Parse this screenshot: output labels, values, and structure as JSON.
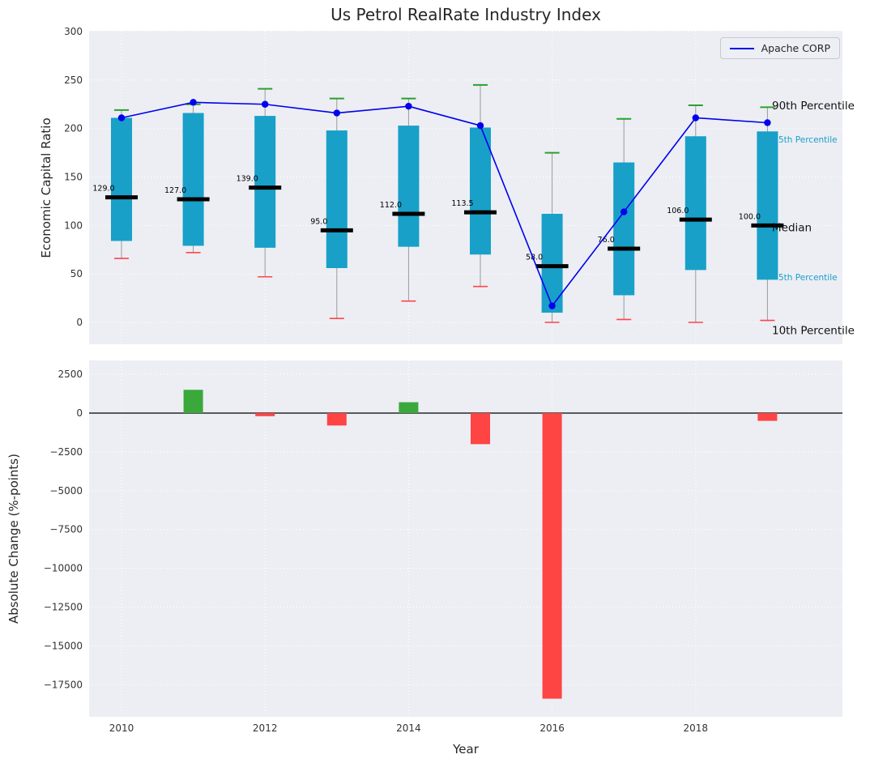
{
  "title": "Us Petrol RealRate Industry Index",
  "colors": {
    "box_fill": "#18a0c8",
    "median_line": "#000000",
    "p90_cap": "#2ca02c",
    "p10_cap": "#ff4545",
    "whisker": "#9a9a9a",
    "company_line": "#0000ee",
    "bar_positive": "#3aa83a",
    "bar_negative": "#ff4444",
    "panel_background": "#eceef4",
    "grid": "#ffffff",
    "annotation_percentile": "#1a9fc9",
    "text": "#333333"
  },
  "legend": {
    "items": [
      {
        "label": "Apache CORP",
        "color": "#0000ee"
      }
    ]
  },
  "chart_data": [
    {
      "type": "box",
      "title": "Us Petrol RealRate Industry Index",
      "ylabel": "Economic Capital Ratio",
      "ylim": [
        -22,
        302
      ],
      "yticks": [
        300,
        250,
        200,
        150,
        100,
        50,
        0
      ],
      "years": [
        2010,
        2011,
        2012,
        2013,
        2014,
        2015,
        2016,
        2017,
        2018,
        2019
      ],
      "percentile_90": [
        219,
        225,
        241,
        231,
        231,
        245,
        175,
        210,
        224,
        222
      ],
      "percentile_75": [
        211,
        216,
        213,
        198,
        203,
        201,
        112,
        165,
        192,
        197
      ],
      "median": [
        129.0,
        127.0,
        139.0,
        95.0,
        112.0,
        113.5,
        58.0,
        76.0,
        106.0,
        100.0
      ],
      "percentile_25": [
        84,
        79,
        77,
        56,
        78,
        70,
        10,
        28,
        54,
        44
      ],
      "percentile_10": [
        66,
        72,
        47,
        4,
        22,
        37,
        0,
        3,
        0,
        2
      ],
      "series": [
        {
          "name": "Apache CORP",
          "values": [
            211,
            227,
            225,
            216,
            223,
            203,
            17,
            114,
            211,
            206
          ]
        }
      ],
      "annotations": [
        {
          "text": "90th Percentile",
          "value": 224,
          "style": "black"
        },
        {
          "text": "5th Percentile",
          "value": 189,
          "style": "cyan"
        },
        {
          "text": "Median",
          "value": 98,
          "style": "black"
        },
        {
          "text": "5th Percentile",
          "value": 47,
          "style": "cyan"
        },
        {
          "text": "10th Percentile",
          "value": -8,
          "style": "black"
        }
      ],
      "legend_position": "upper right",
      "grid": true
    },
    {
      "type": "bar",
      "ylabel": "Absolute Change (%-points)",
      "xlabel": "Year",
      "years": [
        2010,
        2011,
        2012,
        2013,
        2014,
        2015,
        2016,
        2017,
        2018,
        2019
      ],
      "values": [
        0,
        1500,
        -200,
        -800,
        700,
        -2000,
        -18400,
        0,
        0,
        -500
      ],
      "yticks": [
        2500,
        0,
        -2500,
        -5000,
        -7500,
        -10000,
        -12500,
        -15000,
        -17500
      ],
      "xticks": [
        2010,
        2012,
        2014,
        2016,
        2018
      ],
      "ylim": [
        -19500,
        3400
      ],
      "grid": true
    }
  ]
}
